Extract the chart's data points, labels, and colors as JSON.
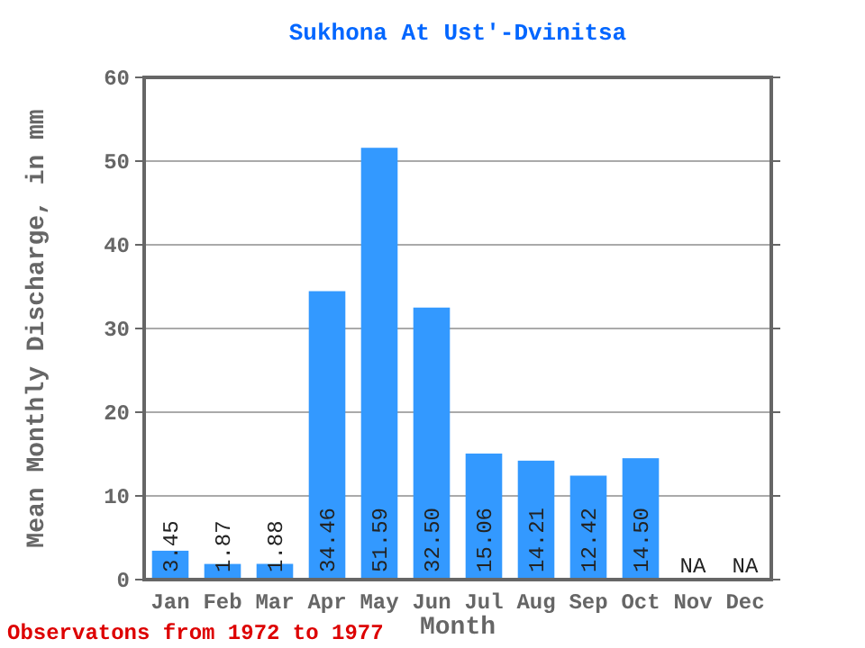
{
  "chart_data": {
    "type": "bar",
    "title": "Sukhona At Ust'-Dvinitsa",
    "xlabel": "Month",
    "ylabel": "Mean Monthly Discharge, in mm",
    "categories": [
      "Jan",
      "Feb",
      "Mar",
      "Apr",
      "May",
      "Jun",
      "Jul",
      "Aug",
      "Sep",
      "Oct",
      "Nov",
      "Dec"
    ],
    "values": [
      3.45,
      1.87,
      1.88,
      34.46,
      51.59,
      32.5,
      15.06,
      14.21,
      12.42,
      14.5,
      null,
      null
    ],
    "value_labels": [
      "3.45",
      "1.87",
      "1.88",
      "34.46",
      "51.59",
      "32.50",
      "15.06",
      "14.21",
      "12.42",
      "14.50",
      "NA",
      "NA"
    ],
    "color": "#3399ff",
    "ylim": [
      0,
      60
    ],
    "yticks": [
      0,
      10,
      20,
      30,
      40,
      50,
      60
    ],
    "grid": "y",
    "annotations": [
      "Observatons from 1972 to 1977"
    ]
  }
}
